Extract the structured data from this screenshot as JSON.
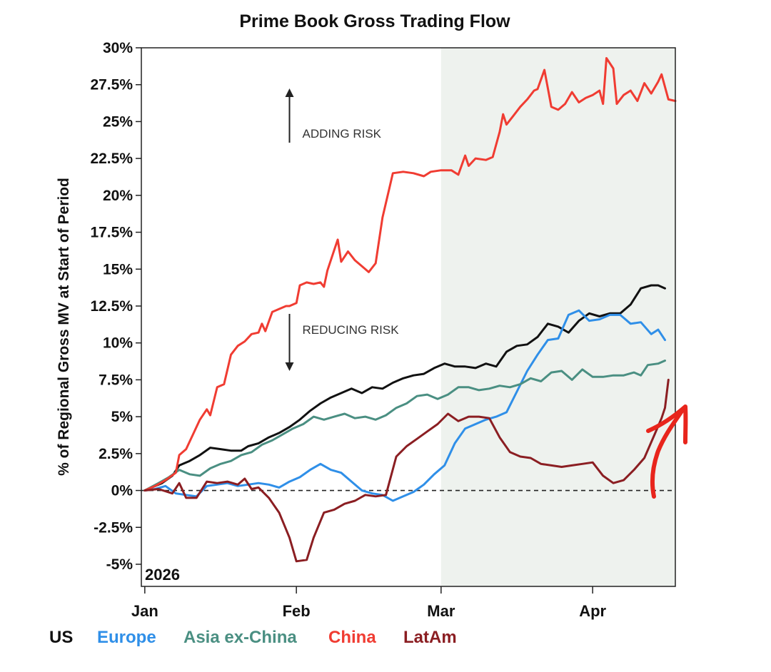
{
  "colors": {
    "US": "#111111",
    "Europe": "#2f8fe8",
    "Asia ex-China": "#4a8f82",
    "China": "#f03c32",
    "LatAm": "#8b1e22",
    "shade": "#eef2ee",
    "scribble": "#e8251c"
  },
  "chart_data": {
    "type": "line",
    "title": "Prime Book Gross Trading Flow",
    "ylabel": "% of Regional Gross MV at Start of Period",
    "xlabel": "",
    "year_label": "2026",
    "ylim": [
      -6.5,
      30
    ],
    "xlim": [
      -0.1,
      15.4
    ],
    "yticks": [
      -5,
      -2.5,
      0,
      2.5,
      5,
      7.5,
      10,
      12.5,
      15,
      17.5,
      20,
      22.5,
      25,
      27.5,
      30
    ],
    "ytick_labels": [
      "-5%",
      "-2.5%",
      "0%",
      "2.5%",
      "5%",
      "7.5%",
      "10%",
      "12.5%",
      "15%",
      "17.5%",
      "20%",
      "22.5%",
      "25%",
      "27.5%",
      "30%"
    ],
    "xticks": [
      0,
      4.4,
      8.6,
      13
    ],
    "xtick_labels": [
      "Jan",
      "Feb",
      "Mar",
      "Apr"
    ],
    "x_unit": "weeks since start of year",
    "shaded_region": [
      8.6,
      15.4
    ],
    "zero_line": "dashed",
    "annotations": [
      {
        "text": "ADDING RISK",
        "arrow": "up",
        "x": 4.2,
        "y": 24.0
      },
      {
        "text": "REDUCING RISK",
        "arrow": "down",
        "x": 4.2,
        "y": 10.5
      }
    ],
    "legend_placement": "bottom-left",
    "series": [
      {
        "name": "US",
        "points": [
          [
            0,
            0
          ],
          [
            0.5,
            0.5
          ],
          [
            0.8,
            1.0
          ],
          [
            1.0,
            1.7
          ],
          [
            1.3,
            2.0
          ],
          [
            1.6,
            2.4
          ],
          [
            1.9,
            2.9
          ],
          [
            2.2,
            2.8
          ],
          [
            2.5,
            2.7
          ],
          [
            2.8,
            2.7
          ],
          [
            3.0,
            3.0
          ],
          [
            3.3,
            3.2
          ],
          [
            3.6,
            3.6
          ],
          [
            3.9,
            3.9
          ],
          [
            4.2,
            4.3
          ],
          [
            4.5,
            4.8
          ],
          [
            4.8,
            5.4
          ],
          [
            5.1,
            5.9
          ],
          [
            5.4,
            6.3
          ],
          [
            5.7,
            6.6
          ],
          [
            6.0,
            6.9
          ],
          [
            6.3,
            6.6
          ],
          [
            6.6,
            7.0
          ],
          [
            6.9,
            6.9
          ],
          [
            7.2,
            7.3
          ],
          [
            7.5,
            7.6
          ],
          [
            7.8,
            7.8
          ],
          [
            8.1,
            7.9
          ],
          [
            8.4,
            8.3
          ],
          [
            8.7,
            8.6
          ],
          [
            9.0,
            8.4
          ],
          [
            9.3,
            8.4
          ],
          [
            9.6,
            8.3
          ],
          [
            9.9,
            8.6
          ],
          [
            10.2,
            8.4
          ],
          [
            10.5,
            9.4
          ],
          [
            10.8,
            9.8
          ],
          [
            11.1,
            9.9
          ],
          [
            11.4,
            10.4
          ],
          [
            11.7,
            11.3
          ],
          [
            12.0,
            11.1
          ],
          [
            12.3,
            10.7
          ],
          [
            12.6,
            11.5
          ],
          [
            12.9,
            12.0
          ],
          [
            13.2,
            11.8
          ],
          [
            13.5,
            12.0
          ],
          [
            13.8,
            12.0
          ],
          [
            14.1,
            12.6
          ],
          [
            14.4,
            13.7
          ],
          [
            14.7,
            13.9
          ],
          [
            14.9,
            13.9
          ],
          [
            15.1,
            13.7
          ]
        ]
      },
      {
        "name": "Europe",
        "points": [
          [
            0,
            0
          ],
          [
            0.3,
            0.1
          ],
          [
            0.6,
            0.3
          ],
          [
            0.9,
            -0.2
          ],
          [
            1.2,
            -0.3
          ],
          [
            1.5,
            -0.4
          ],
          [
            1.8,
            0.3
          ],
          [
            2.1,
            0.4
          ],
          [
            2.4,
            0.5
          ],
          [
            2.7,
            0.3
          ],
          [
            3.0,
            0.4
          ],
          [
            3.3,
            0.5
          ],
          [
            3.6,
            0.4
          ],
          [
            3.9,
            0.2
          ],
          [
            4.2,
            0.6
          ],
          [
            4.5,
            0.9
          ],
          [
            4.8,
            1.4
          ],
          [
            5.1,
            1.8
          ],
          [
            5.4,
            1.4
          ],
          [
            5.7,
            1.2
          ],
          [
            6.0,
            0.6
          ],
          [
            6.3,
            0.0
          ],
          [
            6.6,
            -0.2
          ],
          [
            6.9,
            -0.3
          ],
          [
            7.2,
            -0.7
          ],
          [
            7.5,
            -0.4
          ],
          [
            7.8,
            -0.1
          ],
          [
            8.1,
            0.4
          ],
          [
            8.4,
            1.1
          ],
          [
            8.7,
            1.7
          ],
          [
            9.0,
            3.2
          ],
          [
            9.3,
            4.2
          ],
          [
            9.6,
            4.5
          ],
          [
            9.9,
            4.8
          ],
          [
            10.2,
            5.0
          ],
          [
            10.5,
            5.3
          ],
          [
            10.8,
            6.7
          ],
          [
            11.1,
            8.1
          ],
          [
            11.4,
            9.2
          ],
          [
            11.7,
            10.2
          ],
          [
            12.0,
            10.3
          ],
          [
            12.3,
            11.9
          ],
          [
            12.6,
            12.2
          ],
          [
            12.9,
            11.5
          ],
          [
            13.2,
            11.6
          ],
          [
            13.5,
            11.9
          ],
          [
            13.8,
            11.9
          ],
          [
            14.1,
            11.3
          ],
          [
            14.4,
            11.4
          ],
          [
            14.7,
            10.6
          ],
          [
            14.9,
            10.9
          ],
          [
            15.1,
            10.2
          ]
        ]
      },
      {
        "name": "Asia ex-China",
        "points": [
          [
            0,
            0
          ],
          [
            0.4,
            0.5
          ],
          [
            0.7,
            0.9
          ],
          [
            1.0,
            1.4
          ],
          [
            1.3,
            1.1
          ],
          [
            1.6,
            1.0
          ],
          [
            1.9,
            1.5
          ],
          [
            2.2,
            1.8
          ],
          [
            2.5,
            2.0
          ],
          [
            2.8,
            2.4
          ],
          [
            3.1,
            2.6
          ],
          [
            3.4,
            3.1
          ],
          [
            3.7,
            3.4
          ],
          [
            4.0,
            3.8
          ],
          [
            4.3,
            4.2
          ],
          [
            4.6,
            4.5
          ],
          [
            4.9,
            5.0
          ],
          [
            5.2,
            4.8
          ],
          [
            5.5,
            5.0
          ],
          [
            5.8,
            5.2
          ],
          [
            6.1,
            4.9
          ],
          [
            6.4,
            5.0
          ],
          [
            6.7,
            4.8
          ],
          [
            7.0,
            5.1
          ],
          [
            7.3,
            5.6
          ],
          [
            7.6,
            5.9
          ],
          [
            7.9,
            6.4
          ],
          [
            8.2,
            6.5
          ],
          [
            8.5,
            6.2
          ],
          [
            8.8,
            6.5
          ],
          [
            9.1,
            7.0
          ],
          [
            9.4,
            7.0
          ],
          [
            9.7,
            6.8
          ],
          [
            10.0,
            6.9
          ],
          [
            10.3,
            7.1
          ],
          [
            10.6,
            7.0
          ],
          [
            10.9,
            7.2
          ],
          [
            11.2,
            7.6
          ],
          [
            11.5,
            7.4
          ],
          [
            11.8,
            8.0
          ],
          [
            12.1,
            8.1
          ],
          [
            12.4,
            7.5
          ],
          [
            12.7,
            8.2
          ],
          [
            13.0,
            7.7
          ],
          [
            13.3,
            7.7
          ],
          [
            13.6,
            7.8
          ],
          [
            13.9,
            7.8
          ],
          [
            14.2,
            8.0
          ],
          [
            14.4,
            7.8
          ],
          [
            14.6,
            8.5
          ],
          [
            14.9,
            8.6
          ],
          [
            15.1,
            8.8
          ]
        ]
      },
      {
        "name": "China",
        "points": [
          [
            0,
            0
          ],
          [
            0.3,
            0.3
          ],
          [
            0.6,
            0.7
          ],
          [
            0.9,
            1.2
          ],
          [
            1.0,
            2.4
          ],
          [
            1.2,
            2.8
          ],
          [
            1.4,
            3.8
          ],
          [
            1.6,
            4.8
          ],
          [
            1.8,
            5.5
          ],
          [
            1.9,
            5.1
          ],
          [
            2.1,
            7.0
          ],
          [
            2.3,
            7.2
          ],
          [
            2.5,
            9.2
          ],
          [
            2.7,
            9.8
          ],
          [
            2.9,
            10.1
          ],
          [
            3.1,
            10.6
          ],
          [
            3.3,
            10.7
          ],
          [
            3.4,
            11.3
          ],
          [
            3.5,
            10.8
          ],
          [
            3.7,
            12.1
          ],
          [
            3.9,
            12.3
          ],
          [
            4.1,
            12.5
          ],
          [
            4.2,
            12.5
          ],
          [
            4.4,
            12.7
          ],
          [
            4.5,
            13.9
          ],
          [
            4.7,
            14.1
          ],
          [
            4.9,
            14.0
          ],
          [
            5.1,
            14.1
          ],
          [
            5.2,
            13.8
          ],
          [
            5.3,
            14.9
          ],
          [
            5.5,
            16.3
          ],
          [
            5.6,
            17.0
          ],
          [
            5.7,
            15.5
          ],
          [
            5.9,
            16.2
          ],
          [
            6.1,
            15.6
          ],
          [
            6.3,
            15.2
          ],
          [
            6.5,
            14.8
          ],
          [
            6.7,
            15.4
          ],
          [
            6.9,
            18.5
          ],
          [
            7.1,
            20.5
          ],
          [
            7.2,
            21.5
          ],
          [
            7.5,
            21.6
          ],
          [
            7.8,
            21.5
          ],
          [
            8.1,
            21.3
          ],
          [
            8.3,
            21.6
          ],
          [
            8.6,
            21.7
          ],
          [
            8.9,
            21.7
          ],
          [
            9.1,
            21.4
          ],
          [
            9.3,
            22.7
          ],
          [
            9.4,
            22.0
          ],
          [
            9.6,
            22.5
          ],
          [
            9.9,
            22.4
          ],
          [
            10.1,
            22.6
          ],
          [
            10.3,
            24.3
          ],
          [
            10.4,
            25.5
          ],
          [
            10.5,
            24.8
          ],
          [
            10.7,
            25.4
          ],
          [
            10.9,
            26.0
          ],
          [
            11.1,
            26.5
          ],
          [
            11.3,
            27.1
          ],
          [
            11.4,
            27.2
          ],
          [
            11.6,
            28.5
          ],
          [
            11.8,
            26.0
          ],
          [
            12.0,
            25.8
          ],
          [
            12.2,
            26.2
          ],
          [
            12.4,
            27.0
          ],
          [
            12.6,
            26.3
          ],
          [
            12.8,
            26.6
          ],
          [
            13.0,
            26.8
          ],
          [
            13.2,
            27.1
          ],
          [
            13.3,
            26.2
          ],
          [
            13.4,
            29.3
          ],
          [
            13.6,
            28.6
          ],
          [
            13.7,
            26.2
          ],
          [
            13.9,
            26.8
          ],
          [
            14.1,
            27.1
          ],
          [
            14.3,
            26.4
          ],
          [
            14.5,
            27.6
          ],
          [
            14.7,
            26.9
          ],
          [
            14.9,
            27.7
          ],
          [
            15.0,
            28.2
          ],
          [
            15.2,
            26.5
          ],
          [
            15.4,
            26.4
          ]
        ]
      },
      {
        "name": "LatAm",
        "points": [
          [
            0,
            0
          ],
          [
            0.4,
            0.1
          ],
          [
            0.8,
            -0.2
          ],
          [
            1.0,
            0.5
          ],
          [
            1.2,
            -0.5
          ],
          [
            1.5,
            -0.5
          ],
          [
            1.8,
            0.6
          ],
          [
            2.1,
            0.5
          ],
          [
            2.4,
            0.6
          ],
          [
            2.7,
            0.4
          ],
          [
            2.9,
            0.8
          ],
          [
            3.1,
            0.1
          ],
          [
            3.3,
            0.2
          ],
          [
            3.6,
            -0.5
          ],
          [
            3.9,
            -1.5
          ],
          [
            4.2,
            -3.2
          ],
          [
            4.4,
            -4.8
          ],
          [
            4.7,
            -4.7
          ],
          [
            4.9,
            -3.2
          ],
          [
            5.2,
            -1.5
          ],
          [
            5.5,
            -1.3
          ],
          [
            5.8,
            -0.9
          ],
          [
            6.1,
            -0.7
          ],
          [
            6.4,
            -0.3
          ],
          [
            6.7,
            -0.4
          ],
          [
            7.0,
            -0.3
          ],
          [
            7.3,
            2.3
          ],
          [
            7.6,
            3.0
          ],
          [
            7.9,
            3.5
          ],
          [
            8.2,
            4.0
          ],
          [
            8.5,
            4.5
          ],
          [
            8.8,
            5.2
          ],
          [
            9.1,
            4.7
          ],
          [
            9.4,
            5.0
          ],
          [
            9.7,
            5.0
          ],
          [
            10.0,
            4.9
          ],
          [
            10.3,
            3.6
          ],
          [
            10.6,
            2.6
          ],
          [
            10.9,
            2.3
          ],
          [
            11.2,
            2.2
          ],
          [
            11.5,
            1.8
          ],
          [
            11.8,
            1.7
          ],
          [
            12.1,
            1.6
          ],
          [
            12.4,
            1.7
          ],
          [
            12.7,
            1.8
          ],
          [
            13.0,
            1.9
          ],
          [
            13.3,
            1.0
          ],
          [
            13.6,
            0.5
          ],
          [
            13.9,
            0.7
          ],
          [
            14.2,
            1.4
          ],
          [
            14.5,
            2.2
          ],
          [
            14.8,
            3.8
          ],
          [
            15.0,
            4.9
          ],
          [
            15.1,
            5.6
          ],
          [
            15.2,
            7.5
          ]
        ]
      }
    ]
  }
}
